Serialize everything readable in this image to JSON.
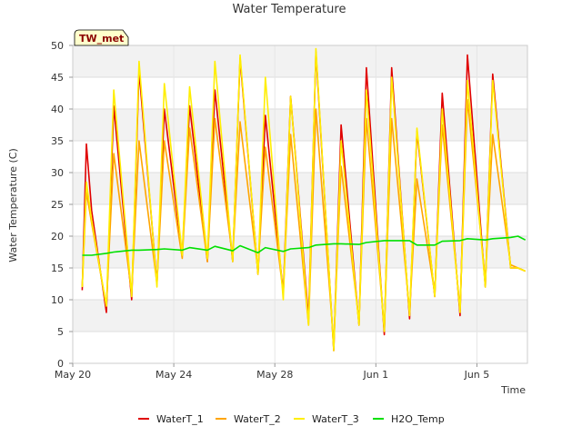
{
  "chart_data": {
    "type": "line",
    "title": "Water Temperature",
    "xlabel": "Time",
    "ylabel": "Water Temperature (C)",
    "badge": "TW_met",
    "ylim": [
      0,
      50
    ],
    "xlim": [
      "2023-05-20",
      "2023-06-07"
    ],
    "xlim_days": [
      0,
      18
    ],
    "grid": true,
    "legend_placement": "bottom",
    "x_ticks": [
      {
        "day": 0,
        "label": "May 20"
      },
      {
        "day": 4,
        "label": "May 24"
      },
      {
        "day": 8,
        "label": "May 28"
      },
      {
        "day": 12,
        "label": "Jun 1"
      },
      {
        "day": 16,
        "label": "Jun 5"
      }
    ],
    "y_ticks": [
      0,
      5,
      10,
      15,
      20,
      25,
      30,
      35,
      40,
      45,
      50
    ],
    "x_unit": "date",
    "x": [
      "2023-05-20T09:00",
      "2023-05-20T13:00",
      "2023-05-20T18:00",
      "2023-05-21T08:00",
      "2023-05-21T15:00",
      "2023-05-22T08:00",
      "2023-05-22T15:00",
      "2023-05-23T08:00",
      "2023-05-23T15:00",
      "2023-05-24T08:00",
      "2023-05-24T15:00",
      "2023-05-25T08:00",
      "2023-05-25T15:00",
      "2023-05-26T08:00",
      "2023-05-26T15:00",
      "2023-05-27T08:00",
      "2023-05-27T15:00",
      "2023-05-28T08:00",
      "2023-05-28T15:00",
      "2023-05-29T08:00",
      "2023-05-29T15:00",
      "2023-05-30T08:00",
      "2023-05-30T15:00",
      "2023-05-31T08:00",
      "2023-05-31T15:00",
      "2023-06-01T08:00",
      "2023-06-01T15:00",
      "2023-06-02T08:00",
      "2023-06-02T15:00",
      "2023-06-03T08:00",
      "2023-06-03T15:00",
      "2023-06-04T08:00",
      "2023-06-04T15:00",
      "2023-06-05T08:00",
      "2023-06-05T15:00",
      "2023-06-06T08:00",
      "2023-06-06T15:00",
      "2023-06-06T22:00"
    ],
    "series": [
      {
        "name": "WaterT_1",
        "color": "#e00000",
        "values": [
          11.5,
          34.5,
          24.0,
          8.0,
          40.5,
          10.0,
          46.0,
          12.5,
          40.0,
          17.0,
          40.5,
          16.0,
          43.0,
          16.0,
          48.0,
          14.0,
          39.0,
          11.0,
          42.0,
          7.0,
          49.0,
          2.0,
          37.5,
          6.0,
          46.5,
          4.5,
          46.5,
          7.0,
          36.5,
          10.5,
          42.5,
          7.5,
          48.5,
          12.0,
          45.5,
          15.0,
          15.0,
          14.5
        ]
      },
      {
        "name": "WaterT_2",
        "color": "#ffa500",
        "values": [
          12.0,
          27.0,
          22.0,
          9.0,
          33.0,
          11.0,
          35.0,
          12.5,
          35.0,
          16.5,
          37.0,
          16.0,
          38.5,
          16.5,
          38.0,
          14.5,
          34.0,
          11.0,
          36.0,
          6.0,
          40.0,
          3.0,
          31.0,
          6.5,
          38.5,
          5.5,
          38.5,
          8.0,
          29.0,
          11.0,
          37.5,
          8.5,
          41.5,
          13.0,
          36.0,
          15.5,
          15.0,
          14.5
        ]
      },
      {
        "name": "WaterT_3",
        "color": "#ffee00",
        "values": [
          12.0,
          28.5,
          22.5,
          9.0,
          43.0,
          10.5,
          47.5,
          12.0,
          44.0,
          17.0,
          43.5,
          16.5,
          47.5,
          16.0,
          48.5,
          14.0,
          45.0,
          10.0,
          42.0,
          6.0,
          49.5,
          2.0,
          35.0,
          6.0,
          43.0,
          5.0,
          45.0,
          7.5,
          37.0,
          10.5,
          40.0,
          8.0,
          44.5,
          12.0,
          44.5,
          15.0,
          15.0,
          14.5
        ]
      },
      {
        "name": "H2O_Temp",
        "color": "#00e000",
        "values": [
          17.0,
          17.0,
          17.0,
          17.3,
          17.5,
          17.8,
          17.8,
          17.9,
          18.0,
          17.8,
          18.2,
          17.8,
          18.4,
          17.7,
          18.5,
          17.4,
          18.2,
          17.6,
          18.0,
          18.2,
          18.6,
          18.8,
          18.8,
          18.7,
          19.0,
          19.3,
          19.3,
          19.3,
          18.6,
          18.6,
          19.2,
          19.3,
          19.6,
          19.4,
          19.6,
          19.8,
          20.0,
          19.4
        ]
      }
    ]
  }
}
